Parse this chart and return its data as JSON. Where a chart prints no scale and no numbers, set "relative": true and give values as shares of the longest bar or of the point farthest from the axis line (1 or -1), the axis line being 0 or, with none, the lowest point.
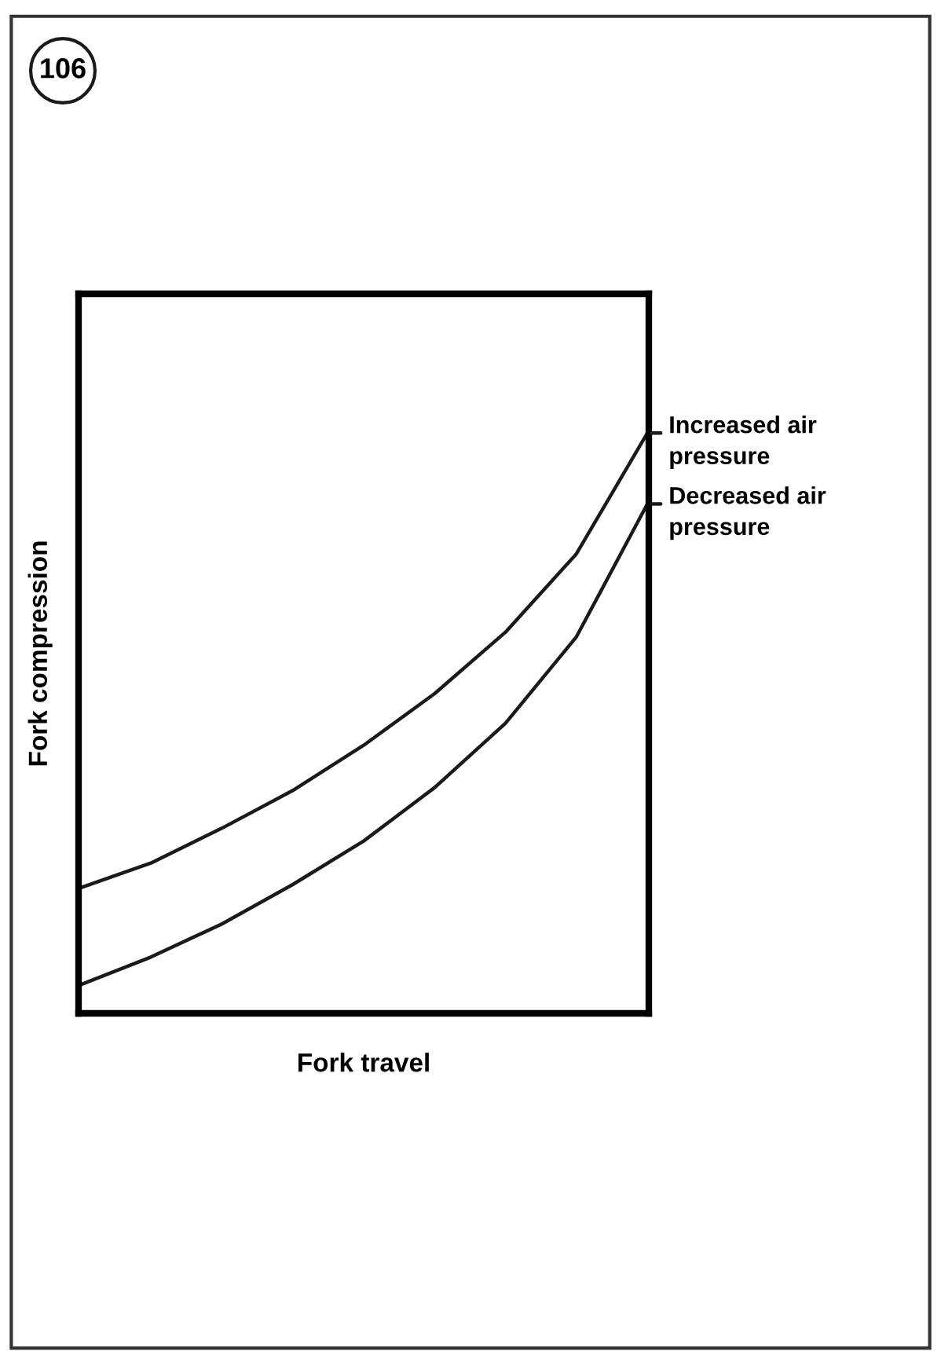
{
  "chart_data": {
    "type": "line",
    "relative": true,
    "xlabel": "Fork travel",
    "ylabel": "Fork compression",
    "annotations": [
      "106"
    ],
    "categories": [
      null,
      null,
      null,
      null,
      null,
      null,
      null,
      null,
      null
    ],
    "series": [
      {
        "name": "Increased air\npressure",
        "color": "#1a1a1a",
        "values": [
          0.216,
          0.259,
          0.319,
          0.384,
          0.462,
          0.551,
          0.657,
          0.792,
          1.0
        ]
      },
      {
        "name": "Decreased air\npressure",
        "color": "#1a1a1a",
        "values": [
          0.049,
          0.097,
          0.154,
          0.222,
          0.297,
          0.389,
          0.5,
          0.649,
          0.878
        ]
      }
    ],
    "legend": "right",
    "tick_labels": false,
    "marker": "none",
    "line_style": "solid"
  }
}
